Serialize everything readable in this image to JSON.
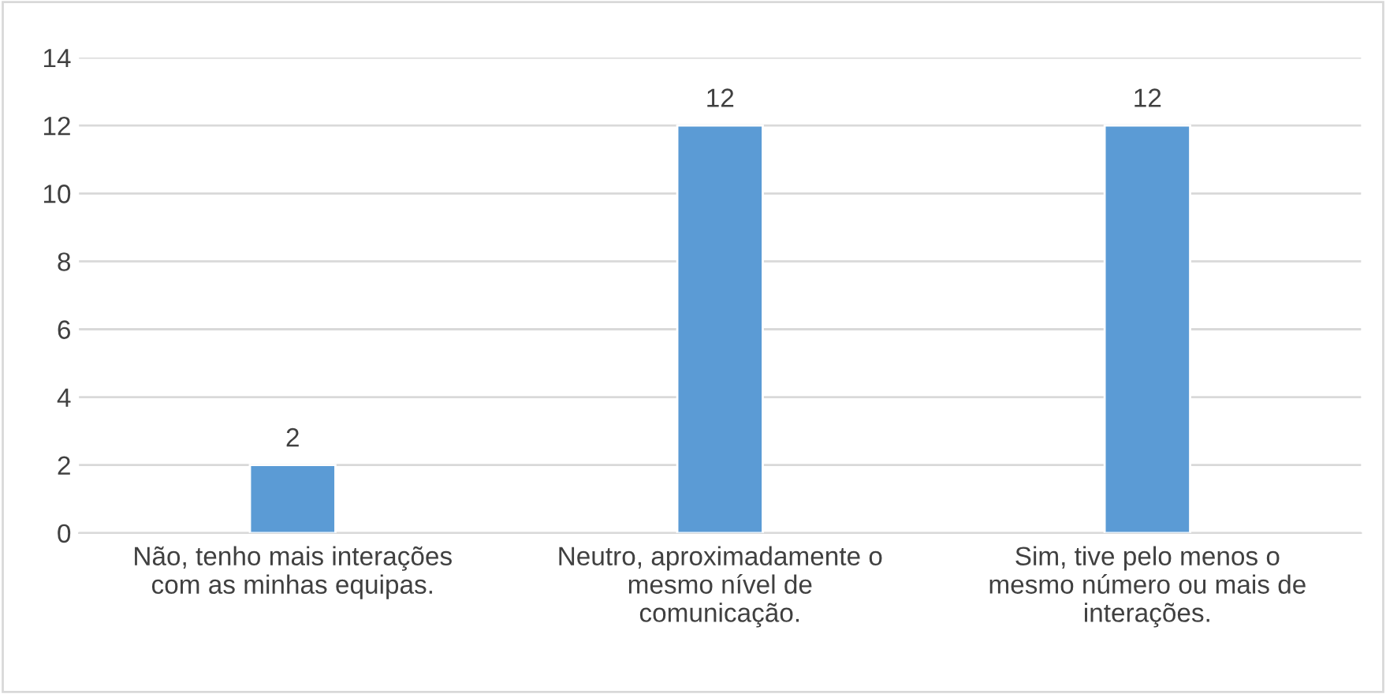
{
  "chart_data": {
    "type": "bar",
    "categories": [
      "Não, tenho mais interações\ncom as minhas equipas.",
      "Neutro, aproximadamente o\nmesmo nível de\ncomunicação.",
      "Sim, tive pelo menos o\nmesmo número ou mais de\ninterações."
    ],
    "values": [
      2,
      12,
      12
    ],
    "color": "#5b9bd5",
    "ylim": [
      0,
      14
    ],
    "yticks": [
      0,
      2,
      4,
      6,
      8,
      10,
      12,
      14
    ],
    "grid": "y",
    "data_labels": true
  }
}
